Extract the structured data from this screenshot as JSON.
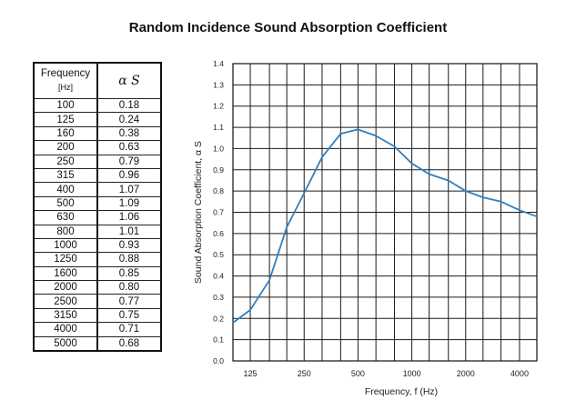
{
  "title": "Random Incidence Sound Absorption Coefficient",
  "table": {
    "header_frequency": "Frequency",
    "header_unit": "[Hz]",
    "header_alpha": "α S",
    "rows": [
      {
        "f": "100",
        "a": "0.18"
      },
      {
        "f": "125",
        "a": "0.24"
      },
      {
        "f": "160",
        "a": "0.38"
      },
      {
        "f": "200",
        "a": "0.63"
      },
      {
        "f": "250",
        "a": "0.79"
      },
      {
        "f": "315",
        "a": "0.96"
      },
      {
        "f": "400",
        "a": "1.07"
      },
      {
        "f": "500",
        "a": "1.09"
      },
      {
        "f": "630",
        "a": "1.06"
      },
      {
        "f": "800",
        "a": "1.01"
      },
      {
        "f": "1000",
        "a": "0.93"
      },
      {
        "f": "1250",
        "a": "0.88"
      },
      {
        "f": "1600",
        "a": "0.85"
      },
      {
        "f": "2000",
        "a": "0.80"
      },
      {
        "f": "2500",
        "a": "0.77"
      },
      {
        "f": "3150",
        "a": "0.75"
      },
      {
        "f": "4000",
        "a": "0.71"
      },
      {
        "f": "5000",
        "a": "0.68"
      }
    ]
  },
  "chart_data": {
    "type": "line",
    "title": "Random Incidence Sound Absorption Coefficient",
    "xlabel": "Frequency, f (Hz)",
    "ylabel": "Sound Absorption Coefficient, α S",
    "x_scale": "log",
    "x": [
      100,
      125,
      160,
      200,
      250,
      315,
      400,
      500,
      630,
      800,
      1000,
      1250,
      1600,
      2000,
      2500,
      3150,
      4000,
      5000
    ],
    "series": [
      {
        "values": [
          0.18,
          0.24,
          0.38,
          0.63,
          0.79,
          0.96,
          1.07,
          1.09,
          1.06,
          1.01,
          0.93,
          0.88,
          0.85,
          0.8,
          0.77,
          0.75,
          0.71,
          0.68
        ],
        "color": "#2f7fbf"
      }
    ],
    "x_tick_labels": [
      "125",
      "250",
      "500",
      "1000",
      "2000",
      "4000"
    ],
    "y_ticks": [
      0.0,
      0.1,
      0.2,
      0.3,
      0.4,
      0.5,
      0.6,
      0.7,
      0.8,
      0.9,
      1.0,
      1.1,
      1.2,
      1.3,
      1.4
    ],
    "y_tick_labels": [
      "0.0",
      "0.1",
      "0.2",
      "0.3",
      "0.4",
      "0.5",
      "0.6",
      "0.7",
      "0.8",
      "0.9",
      "1.0",
      "1.1",
      "1.2",
      "1.3",
      "1.4"
    ],
    "ylim": [
      0,
      1.4
    ],
    "xlim": [
      100,
      5000
    ],
    "grid": true,
    "legend": "none"
  }
}
